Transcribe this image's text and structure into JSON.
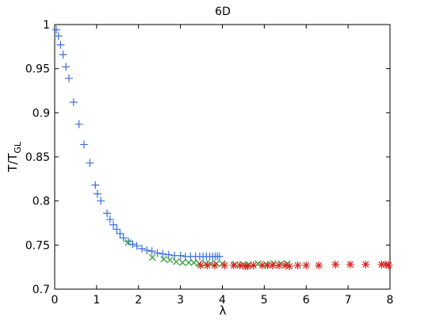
{
  "chart_data": {
    "type": "scatter",
    "title": "6D",
    "xlabel": "λ",
    "ylabel_main": "T/T",
    "ylabel_sub": "GL",
    "xlim": [
      0,
      8
    ],
    "ylim": [
      0.7,
      1.0
    ],
    "xticks": [
      0,
      1,
      2,
      3,
      4,
      5,
      6,
      7,
      8
    ],
    "yticks": [
      0.7,
      0.75,
      0.8,
      0.85,
      0.9,
      0.95,
      1.0
    ],
    "ytick_labels": [
      "0.7",
      "0.75",
      "0.8",
      "0.85",
      "0.9",
      "0.95",
      "1"
    ],
    "grid": false,
    "legend": "none",
    "series": [
      {
        "marker": "plus",
        "color": "#3b6fdc",
        "points": [
          [
            0.04,
            0.994
          ],
          [
            0.09,
            0.987
          ],
          [
            0.14,
            0.977
          ],
          [
            0.2,
            0.966
          ],
          [
            0.27,
            0.952
          ],
          [
            0.34,
            0.939
          ],
          [
            0.45,
            0.912
          ],
          [
            0.58,
            0.887
          ],
          [
            0.7,
            0.864
          ],
          [
            0.84,
            0.843
          ],
          [
            0.97,
            0.818
          ],
          [
            1.02,
            0.808
          ],
          [
            1.1,
            0.8
          ],
          [
            1.25,
            0.786
          ],
          [
            1.32,
            0.779
          ],
          [
            1.4,
            0.773
          ],
          [
            1.48,
            0.768
          ],
          [
            1.56,
            0.763
          ],
          [
            1.64,
            0.758
          ],
          [
            1.76,
            0.754
          ],
          [
            1.86,
            0.751
          ],
          [
            1.96,
            0.749
          ],
          [
            2.08,
            0.746
          ],
          [
            2.2,
            0.744
          ],
          [
            2.32,
            0.743
          ],
          [
            2.45,
            0.741
          ],
          [
            2.58,
            0.74
          ],
          [
            2.72,
            0.739
          ],
          [
            2.86,
            0.738
          ],
          [
            3.0,
            0.738
          ],
          [
            3.12,
            0.737
          ],
          [
            3.24,
            0.737
          ],
          [
            3.36,
            0.737
          ],
          [
            3.46,
            0.737
          ],
          [
            3.54,
            0.737
          ],
          [
            3.62,
            0.737
          ],
          [
            3.7,
            0.737
          ],
          [
            3.77,
            0.737
          ],
          [
            3.83,
            0.737
          ],
          [
            3.88,
            0.737
          ],
          [
            3.93,
            0.737
          ]
        ]
      },
      {
        "marker": "x",
        "color": "#2a9a2a",
        "points": [
          [
            1.75,
            0.753
          ],
          [
            2.33,
            0.736
          ],
          [
            2.6,
            0.734
          ],
          [
            2.75,
            0.733
          ],
          [
            2.9,
            0.731
          ],
          [
            3.05,
            0.73
          ],
          [
            3.2,
            0.73
          ],
          [
            3.32,
            0.73
          ],
          [
            3.45,
            0.729
          ],
          [
            3.6,
            0.729
          ],
          [
            3.72,
            0.729
          ],
          [
            3.86,
            0.729
          ],
          [
            4.0,
            0.729
          ],
          [
            4.3,
            0.728
          ],
          [
            4.5,
            0.728
          ],
          [
            4.62,
            0.728
          ],
          [
            4.85,
            0.729
          ],
          [
            5.05,
            0.728
          ],
          [
            5.22,
            0.729
          ],
          [
            5.4,
            0.729
          ],
          [
            5.55,
            0.729
          ]
        ]
      },
      {
        "marker": "asterisk",
        "color": "#e02020",
        "points": [
          [
            3.48,
            0.727
          ],
          [
            3.64,
            0.727
          ],
          [
            3.82,
            0.727
          ],
          [
            4.05,
            0.727
          ],
          [
            4.27,
            0.727
          ],
          [
            4.42,
            0.727
          ],
          [
            4.55,
            0.726
          ],
          [
            4.6,
            0.726
          ],
          [
            4.74,
            0.727
          ],
          [
            4.95,
            0.727
          ],
          [
            5.08,
            0.727
          ],
          [
            5.2,
            0.727
          ],
          [
            5.35,
            0.727
          ],
          [
            5.5,
            0.727
          ],
          [
            5.6,
            0.726
          ],
          [
            5.8,
            0.727
          ],
          [
            6.0,
            0.727
          ],
          [
            6.3,
            0.727
          ],
          [
            6.7,
            0.728
          ],
          [
            7.05,
            0.728
          ],
          [
            7.42,
            0.728
          ],
          [
            7.8,
            0.728
          ],
          [
            7.9,
            0.728
          ],
          [
            7.97,
            0.727
          ]
        ]
      }
    ]
  }
}
